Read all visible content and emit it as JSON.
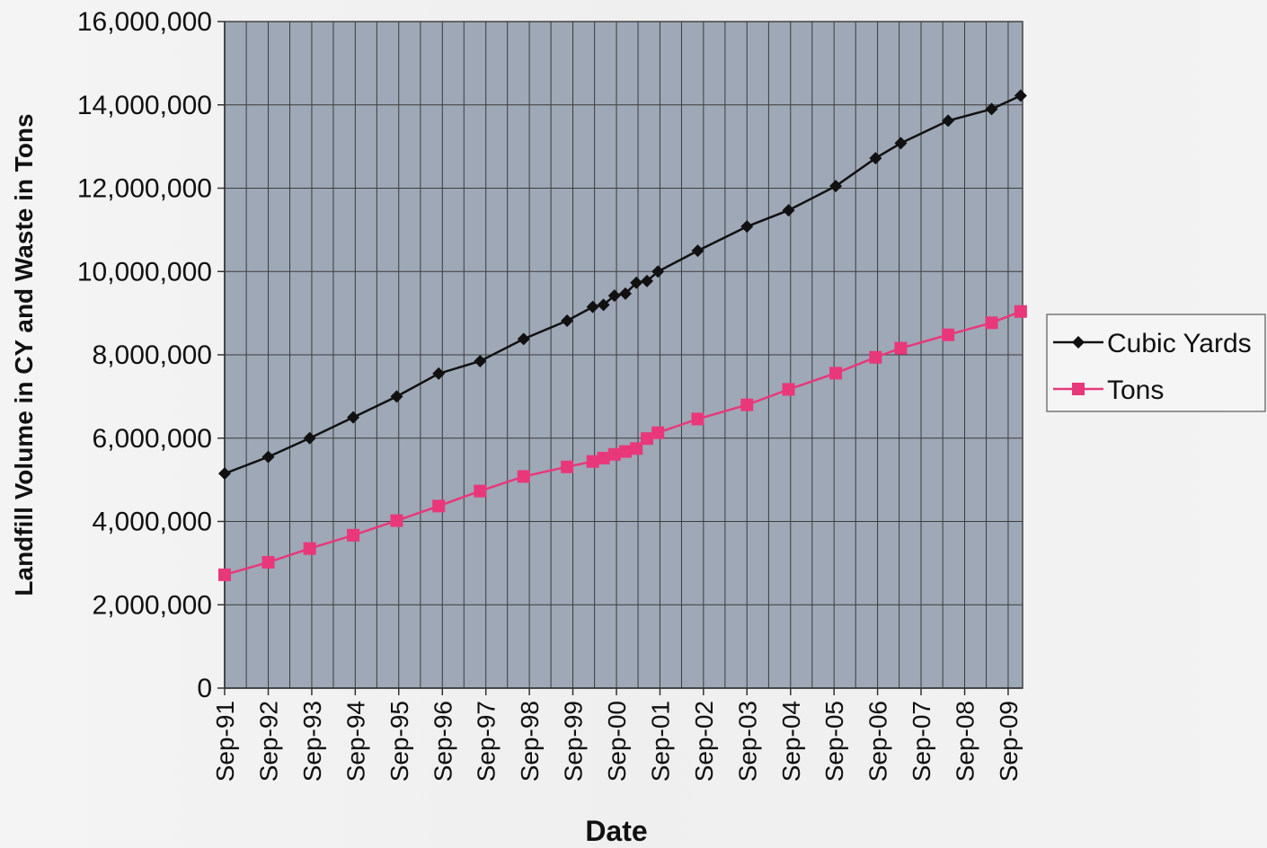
{
  "chart_data": {
    "type": "line",
    "title": "",
    "xlabel": "Date",
    "ylabel": "Landfill Volume in CY and Waste in Tons",
    "x_ticks": [
      "Sep-91",
      "Sep-92",
      "Sep-93",
      "Sep-94",
      "Sep-95",
      "Sep-96",
      "Sep-97",
      "Sep-98",
      "Sep-99",
      "Sep-00",
      "Sep-01",
      "Sep-02",
      "Sep-03",
      "Sep-04",
      "Sep-05",
      "Sep-06",
      "Sep-07",
      "Sep-08",
      "Sep-09"
    ],
    "xlim": [
      "1991-09-01",
      "2009-12-31"
    ],
    "ylim": [
      0,
      16000000
    ],
    "y_ticks": [
      {
        "value": 0,
        "label": "0"
      },
      {
        "value": 2000000,
        "label": "2,000,000"
      },
      {
        "value": 4000000,
        "label": "4,000,000"
      },
      {
        "value": 6000000,
        "label": "6,000,000"
      },
      {
        "value": 8000000,
        "label": "8,000,000"
      },
      {
        "value": 10000000,
        "label": "10,000,000"
      },
      {
        "value": 12000000,
        "label": "12,000,000"
      },
      {
        "value": 14000000,
        "label": "14,000,000"
      },
      {
        "value": 16000000,
        "label": "16,000,000"
      }
    ],
    "grid": true,
    "legend": "right",
    "plot_bg": "#9ea8b7",
    "series": [
      {
        "name": "Cubic Yards",
        "color": "#111111",
        "marker": "diamond",
        "points": [
          {
            "x": "1991-09-01",
            "y": 5150000
          },
          {
            "x": "1992-09-01",
            "y": 5550000
          },
          {
            "x": "1993-08-15",
            "y": 6000000
          },
          {
            "x": "1994-08-15",
            "y": 6500000
          },
          {
            "x": "1995-08-15",
            "y": 7000000
          },
          {
            "x": "1996-08-01",
            "y": 7550000
          },
          {
            "x": "1997-07-15",
            "y": 7850000
          },
          {
            "x": "1998-07-15",
            "y": 8380000
          },
          {
            "x": "1999-07-15",
            "y": 8820000
          },
          {
            "x": "2000-02-15",
            "y": 9150000
          },
          {
            "x": "2000-05-15",
            "y": 9200000
          },
          {
            "x": "2000-08-15",
            "y": 9420000
          },
          {
            "x": "2000-11-15",
            "y": 9470000
          },
          {
            "x": "2001-02-15",
            "y": 9730000
          },
          {
            "x": "2001-05-15",
            "y": 9770000
          },
          {
            "x": "2001-08-15",
            "y": 10000000
          },
          {
            "x": "2002-07-15",
            "y": 10500000
          },
          {
            "x": "2003-09-01",
            "y": 11080000
          },
          {
            "x": "2004-08-15",
            "y": 11470000
          },
          {
            "x": "2005-09-15",
            "y": 12050000
          },
          {
            "x": "2006-08-15",
            "y": 12720000
          },
          {
            "x": "2007-03-15",
            "y": 13080000
          },
          {
            "x": "2008-04-15",
            "y": 13620000
          },
          {
            "x": "2009-04-15",
            "y": 13900000
          },
          {
            "x": "2009-12-15",
            "y": 14220000
          }
        ]
      },
      {
        "name": "Tons",
        "color": "#e8387a",
        "marker": "square",
        "points": [
          {
            "x": "1991-09-01",
            "y": 2720000
          },
          {
            "x": "1992-09-01",
            "y": 3020000
          },
          {
            "x": "1993-08-15",
            "y": 3350000
          },
          {
            "x": "1994-08-15",
            "y": 3670000
          },
          {
            "x": "1995-08-15",
            "y": 4020000
          },
          {
            "x": "1996-08-01",
            "y": 4370000
          },
          {
            "x": "1997-07-15",
            "y": 4730000
          },
          {
            "x": "1998-07-15",
            "y": 5080000
          },
          {
            "x": "1999-07-15",
            "y": 5310000
          },
          {
            "x": "2000-02-15",
            "y": 5440000
          },
          {
            "x": "2000-05-15",
            "y": 5520000
          },
          {
            "x": "2000-08-15",
            "y": 5610000
          },
          {
            "x": "2000-11-15",
            "y": 5680000
          },
          {
            "x": "2001-02-15",
            "y": 5750000
          },
          {
            "x": "2001-05-15",
            "y": 5990000
          },
          {
            "x": "2001-08-15",
            "y": 6130000
          },
          {
            "x": "2002-07-15",
            "y": 6460000
          },
          {
            "x": "2003-09-01",
            "y": 6800000
          },
          {
            "x": "2004-08-15",
            "y": 7170000
          },
          {
            "x": "2005-09-15",
            "y": 7560000
          },
          {
            "x": "2006-08-15",
            "y": 7940000
          },
          {
            "x": "2007-03-15",
            "y": 8160000
          },
          {
            "x": "2008-04-15",
            "y": 8480000
          },
          {
            "x": "2009-04-15",
            "y": 8770000
          },
          {
            "x": "2009-12-15",
            "y": 9040000
          }
        ]
      }
    ]
  }
}
